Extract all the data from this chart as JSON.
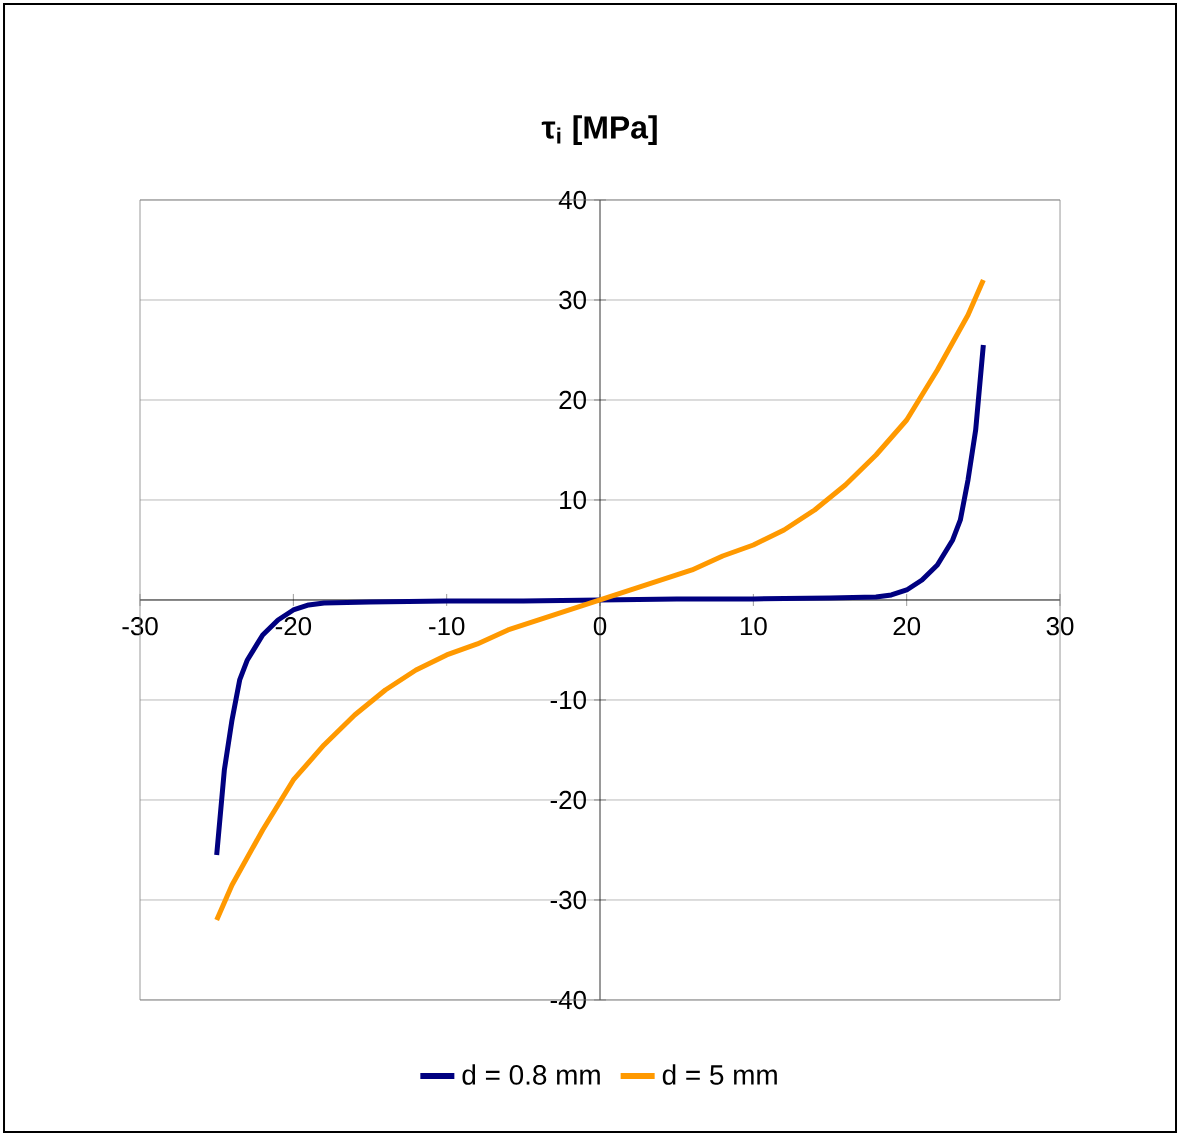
{
  "chart_data": {
    "type": "line",
    "title": "τ$_{i}$ [MPa]",
    "xlim": [
      -30,
      30
    ],
    "ylim": [
      -40,
      40
    ],
    "xticks": [
      -30,
      -20,
      -10,
      0,
      10,
      20,
      30
    ],
    "yticks": [
      -40,
      -30,
      -20,
      -10,
      {
        "value": 0,
        "label": null
      },
      10,
      20,
      30,
      40
    ],
    "grid": "y",
    "legend": "bottom",
    "marker": "none",
    "line_style": "solid",
    "series": [
      {
        "name": "d = 0.8 mm",
        "color": "#000080",
        "x": [
          -25,
          -24.5,
          -24,
          -23.5,
          -23,
          -22,
          -21,
          -20,
          -19,
          -18,
          -15,
          -10,
          -5,
          0,
          5,
          10,
          15,
          18,
          19,
          20,
          21,
          22,
          23,
          23.5,
          24,
          24.5,
          25
        ],
        "values": [
          -25.5,
          -17,
          -12,
          -8,
          -6,
          -3.5,
          -2,
          -1,
          -0.5,
          -0.3,
          -0.2,
          -0.1,
          -0.1,
          0,
          0.1,
          0.1,
          0.2,
          0.3,
          0.5,
          1,
          2,
          3.5,
          6,
          8,
          12,
          17,
          25.5
        ]
      },
      {
        "name": "d = 5 mm",
        "color": "#ff9900",
        "x": [
          -25,
          -24,
          -22,
          -20,
          -18,
          -16,
          -14,
          -12,
          -10,
          -8,
          -6,
          -4,
          -2,
          0,
          2,
          4,
          6,
          8,
          10,
          12,
          14,
          16,
          18,
          20,
          22,
          24,
          25
        ],
        "values": [
          -32,
          -28.5,
          -23,
          -18,
          -14.5,
          -11.5,
          -9,
          -7,
          -5.5,
          -4.4,
          -3,
          -2,
          -1,
          0,
          1,
          2,
          3,
          4.4,
          5.5,
          7,
          9,
          11.5,
          14.5,
          18,
          23,
          28.5,
          32
        ]
      }
    ]
  }
}
